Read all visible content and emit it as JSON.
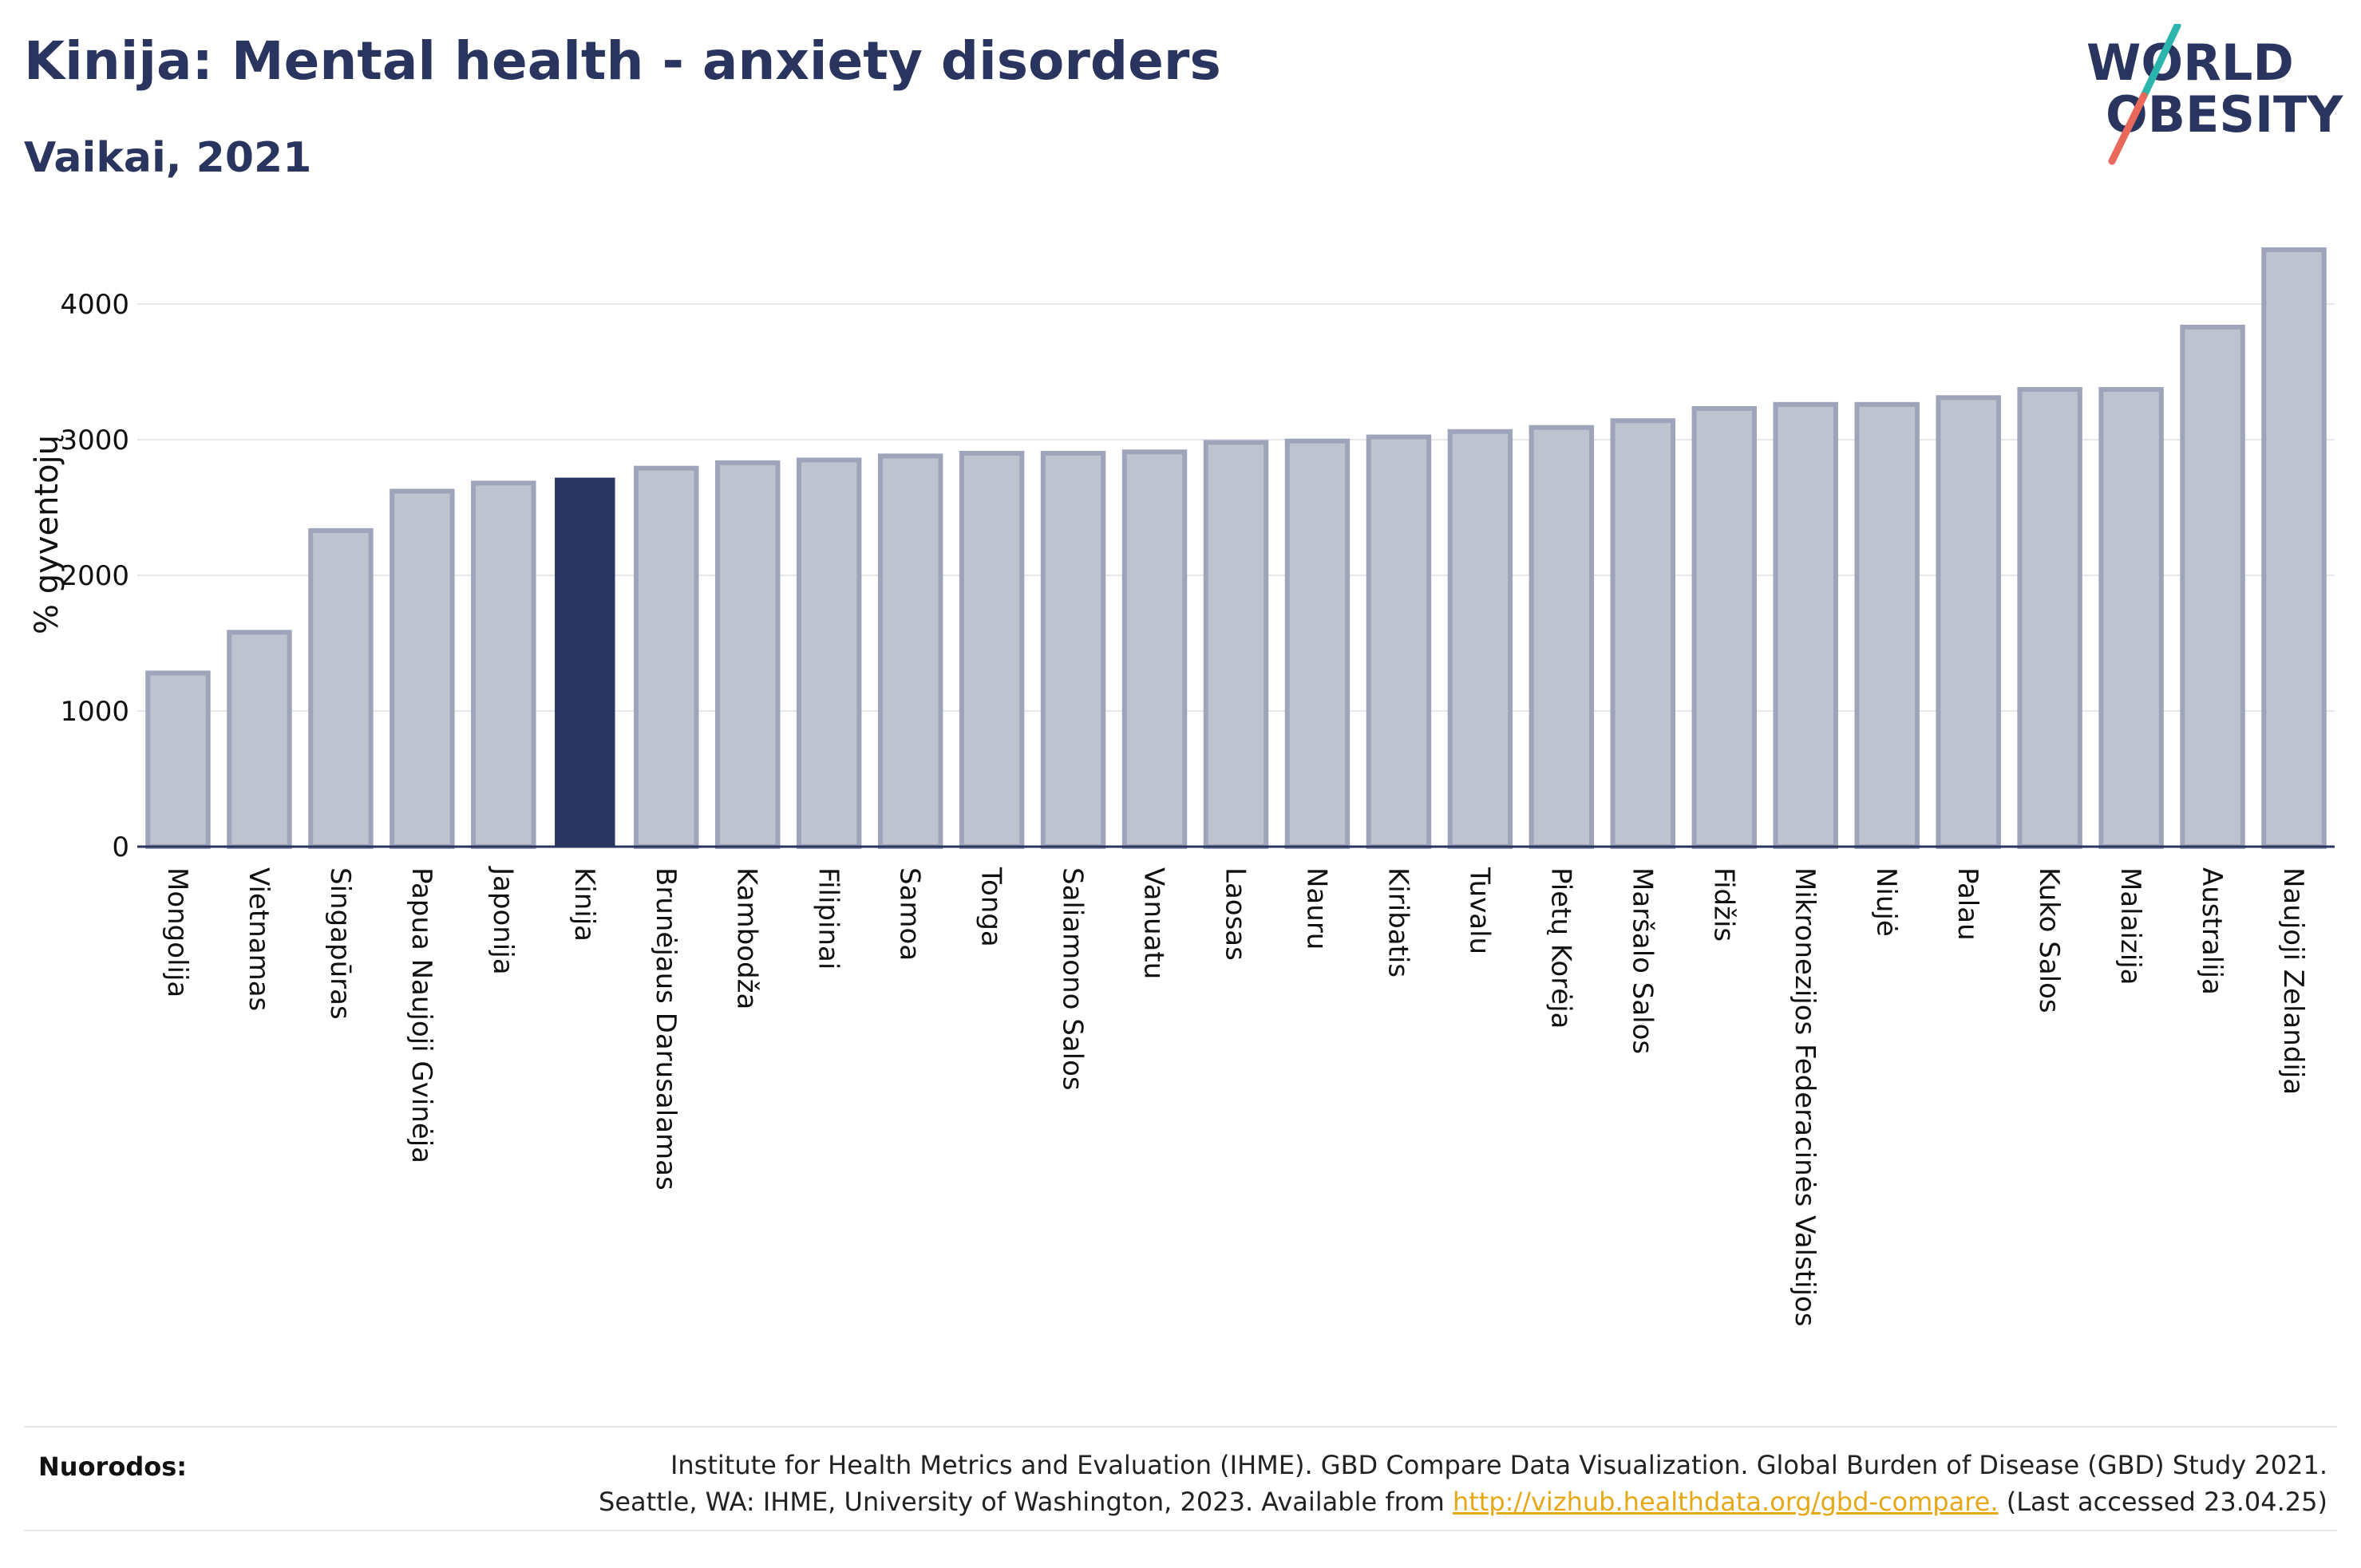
{
  "header": {
    "title": "Kinija: Mental health - anxiety disorders",
    "subtitle": "Vaikai, 2021"
  },
  "logo": {
    "line1": "WORLD",
    "line2": "OBESITY",
    "colors": {
      "text": "#2a355f",
      "slash_top": "#2bb5ac",
      "slash_bottom": "#e8685a"
    }
  },
  "colors": {
    "bar_default": "#bfc3d0",
    "bar_border": "#9ea4ba",
    "bar_highlight": "#2a355f",
    "grid": "#e6e7ec",
    "axis": "#2a355f"
  },
  "chart_data": {
    "type": "bar",
    "title": "Kinija: Mental health - anxiety disorders",
    "subtitle": "Vaikai, 2021",
    "ylabel": "% gyventojų",
    "xlabel": "",
    "ylim": [
      0,
      4500
    ],
    "yticks": [
      0,
      1000,
      2000,
      3000,
      4000
    ],
    "grid": true,
    "highlight": "Kinija",
    "categories": [
      "Mongolija",
      "Vietnamas",
      "Singapūras",
      "Papua Naujoji Gvinėja",
      "Japonija",
      "Kinija",
      "Brunėjaus Darusalamas",
      "Kambodža",
      "Filipinai",
      "Samoa",
      "Tonga",
      "Saliamono Salos",
      "Vanuatu",
      "Laosas",
      "Nauru",
      "Kiribatis",
      "Tuvalu",
      "Pietų Korėja",
      "Maršalo Salos",
      "Fidžis",
      "Mikronezijos Federacinės Valstijos",
      "Niujė",
      "Palau",
      "Kuko Salos",
      "Malaizija",
      "Australija",
      "Naujoji Zelandija"
    ],
    "values": [
      1280,
      1580,
      2330,
      2620,
      2680,
      2720,
      2790,
      2830,
      2850,
      2880,
      2900,
      2900,
      2910,
      2980,
      2990,
      3020,
      3060,
      3090,
      3140,
      3230,
      3260,
      3260,
      3310,
      3370,
      3370,
      3830,
      4400
    ]
  },
  "footer": {
    "label": "Nuorodos:",
    "line1": "Institute for Health Metrics and Evaluation (IHME). GBD Compare Data Visualization. Global Burden of Disease (GBD) Study 2021.",
    "line2_prefix": "Seattle, WA: IHME, University of Washington, 2023. Available from ",
    "link": "http://vizhub.healthdata.org/gbd-compare.",
    "line2_suffix": " (Last accessed 23.04.25)"
  }
}
